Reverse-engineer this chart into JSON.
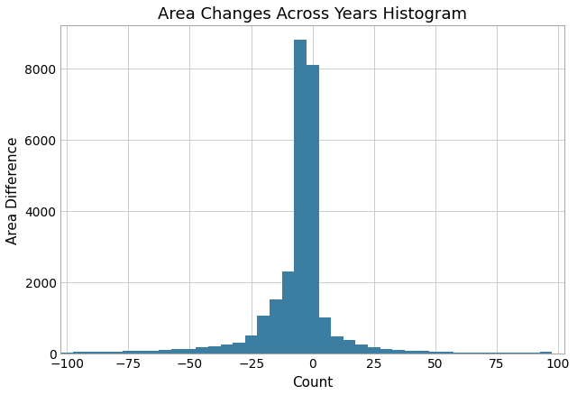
{
  "title": "Area Changes Across Years Histogram",
  "xlabel": "Count",
  "ylabel": "Area Difference",
  "bar_color": "#3b7ea1",
  "bar_edgecolor": "none",
  "xlim": [
    -102.5,
    102.5
  ],
  "ylim": [
    0,
    9200
  ],
  "xticks": [
    -100,
    -75,
    -50,
    -25,
    0,
    25,
    50,
    75,
    100
  ],
  "yticks": [
    0,
    2000,
    4000,
    6000,
    8000
  ],
  "bin_edges": [
    -102.5,
    -97.5,
    -92.5,
    -87.5,
    -82.5,
    -77.5,
    -72.5,
    -67.5,
    -62.5,
    -57.5,
    -52.5,
    -47.5,
    -42.5,
    -37.5,
    -32.5,
    -27.5,
    -22.5,
    -17.5,
    -12.5,
    -7.5,
    -2.5,
    2.5,
    7.5,
    12.5,
    17.5,
    22.5,
    27.5,
    32.5,
    37.5,
    42.5,
    47.5,
    52.5,
    57.5,
    62.5,
    67.5,
    72.5,
    77.5,
    82.5,
    87.5,
    92.5,
    97.5
  ],
  "counts": [
    20,
    50,
    30,
    30,
    40,
    55,
    65,
    75,
    90,
    110,
    130,
    160,
    190,
    240,
    300,
    500,
    1050,
    1500,
    2300,
    8800,
    8100,
    1000,
    480,
    380,
    240,
    170,
    120,
    90,
    70,
    55,
    40,
    35,
    25,
    20,
    20,
    15,
    15,
    10,
    10,
    30
  ],
  "grid_color": "#cccccc",
  "background_color": "#ffffff",
  "title_fontsize": 13,
  "label_fontsize": 11,
  "tick_fontsize": 10,
  "spine_color": "#aaaaaa"
}
